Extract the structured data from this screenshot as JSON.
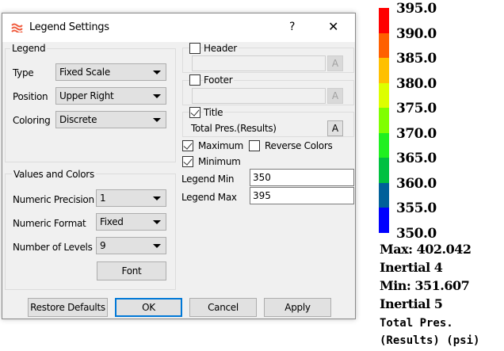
{
  "dialog": {
    "title": "Legend Settings",
    "help": "?",
    "close": "✕",
    "legend_group": {
      "label": "Legend",
      "type_label": "Type",
      "type_value": "Fixed Scale",
      "position_label": "Position",
      "position_value": "Upper Right",
      "coloring_label": "Coloring",
      "coloring_value": "Discrete"
    },
    "values_group": {
      "label": "Values and Colors",
      "precision_label": "Numeric Precision",
      "precision_value": "1",
      "format_label": "Numeric Format",
      "format_value": "Fixed",
      "levels_label": "Number of Levels",
      "levels_value": "9",
      "font_button": "Font"
    },
    "header": {
      "label": "Header",
      "checked": false,
      "value": "",
      "font_button": "A"
    },
    "footer": {
      "label": "Footer",
      "checked": false,
      "value": "",
      "font_button": "A"
    },
    "title_opt": {
      "label": "Title",
      "checked": true,
      "value": "Total Pres.(Results)",
      "font_button": "A"
    },
    "maximum": {
      "label": "Maximum",
      "checked": true
    },
    "reverse_colors": {
      "label": "Reverse Colors",
      "checked": false
    },
    "minimum": {
      "label": "Minimum",
      "checked": true
    },
    "legend_min": {
      "label": "Legend Min",
      "value": "350"
    },
    "legend_max": {
      "label": "Legend Max",
      "value": "395"
    },
    "buttons": {
      "restore": "Restore Defaults",
      "ok": "OK",
      "cancel": "Cancel",
      "apply": "Apply"
    },
    "accent": "#0078d7"
  },
  "legend": {
    "levels": [
      "395.0",
      "390.0",
      "385.0",
      "380.0",
      "375.0",
      "370.0",
      "365.0",
      "360.0",
      "355.0",
      "350.0"
    ],
    "colors": [
      "#ff0000",
      "#ff6000",
      "#ffc000",
      "#ddff00",
      "#80ff00",
      "#20f020",
      "#00c040",
      "#00609a",
      "#0000ff"
    ],
    "max_text": "Max: 402.042",
    "max_loc": "Inertial 4",
    "min_text": "Min: 351.607",
    "min_loc": "Inertial 5",
    "title_line1": "Total Pres.",
    "title_line2": "(Results) (psi)"
  }
}
